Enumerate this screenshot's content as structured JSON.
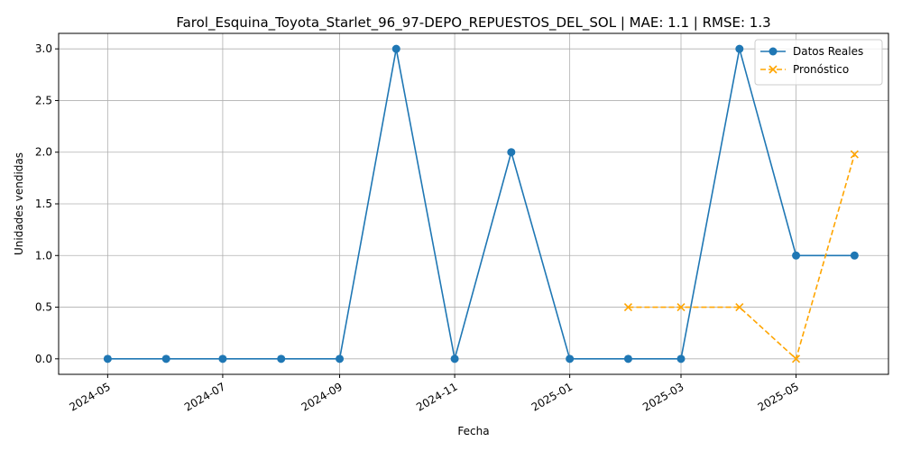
{
  "chart_data": {
    "type": "line",
    "title": "Farol_Esquina_Toyota_Starlet_96_97-DEPO_REPUESTOS_DEL_SOL | MAE: 1.1 | RMSE: 1.3",
    "xlabel": "Fecha",
    "ylabel": "Unidades vendidas",
    "ylim": [
      -0.15,
      3.15
    ],
    "xlim": [
      "2024-04-05",
      "2025-06-19"
    ],
    "x_tick_labels": [
      "2024-05",
      "2024-07",
      "2024-09",
      "2024-11",
      "2025-01",
      "2025-03",
      "2025-05"
    ],
    "x_tick_dates": [
      "2024-05-01",
      "2024-07-01",
      "2024-09-01",
      "2024-11-01",
      "2025-01-01",
      "2025-03-01",
      "2025-05-01"
    ],
    "y_ticks": [
      0.0,
      0.5,
      1.0,
      1.5,
      2.0,
      2.5,
      3.0
    ],
    "y_tick_labels": [
      "0.0",
      "0.5",
      "1.0",
      "1.5",
      "2.0",
      "2.5",
      "3.0"
    ],
    "grid": true,
    "legend_position": "top-right",
    "series": [
      {
        "name": "Datos Reales",
        "color": "#1f77b4",
        "marker": "circle",
        "linestyle": "solid",
        "points": [
          {
            "x": "2024-05-01",
            "y": 0
          },
          {
            "x": "2024-06-01",
            "y": 0
          },
          {
            "x": "2024-07-01",
            "y": 0
          },
          {
            "x": "2024-08-01",
            "y": 0
          },
          {
            "x": "2024-09-01",
            "y": 0
          },
          {
            "x": "2024-10-01",
            "y": 3
          },
          {
            "x": "2024-11-01",
            "y": 0
          },
          {
            "x": "2024-12-01",
            "y": 2
          },
          {
            "x": "2025-01-01",
            "y": 0
          },
          {
            "x": "2025-02-01",
            "y": 0
          },
          {
            "x": "2025-03-01",
            "y": 0
          },
          {
            "x": "2025-04-01",
            "y": 3
          },
          {
            "x": "2025-05-01",
            "y": 1
          },
          {
            "x": "2025-06-01",
            "y": 1
          }
        ]
      },
      {
        "name": "Pronóstico",
        "color": "#ffa500",
        "marker": "x",
        "linestyle": "dashed",
        "points": [
          {
            "x": "2025-02-01",
            "y": 0.5
          },
          {
            "x": "2025-03-01",
            "y": 0.5
          },
          {
            "x": "2025-04-01",
            "y": 0.5
          },
          {
            "x": "2025-05-01",
            "y": 0.0
          },
          {
            "x": "2025-06-01",
            "y": 1.98
          }
        ]
      }
    ]
  }
}
